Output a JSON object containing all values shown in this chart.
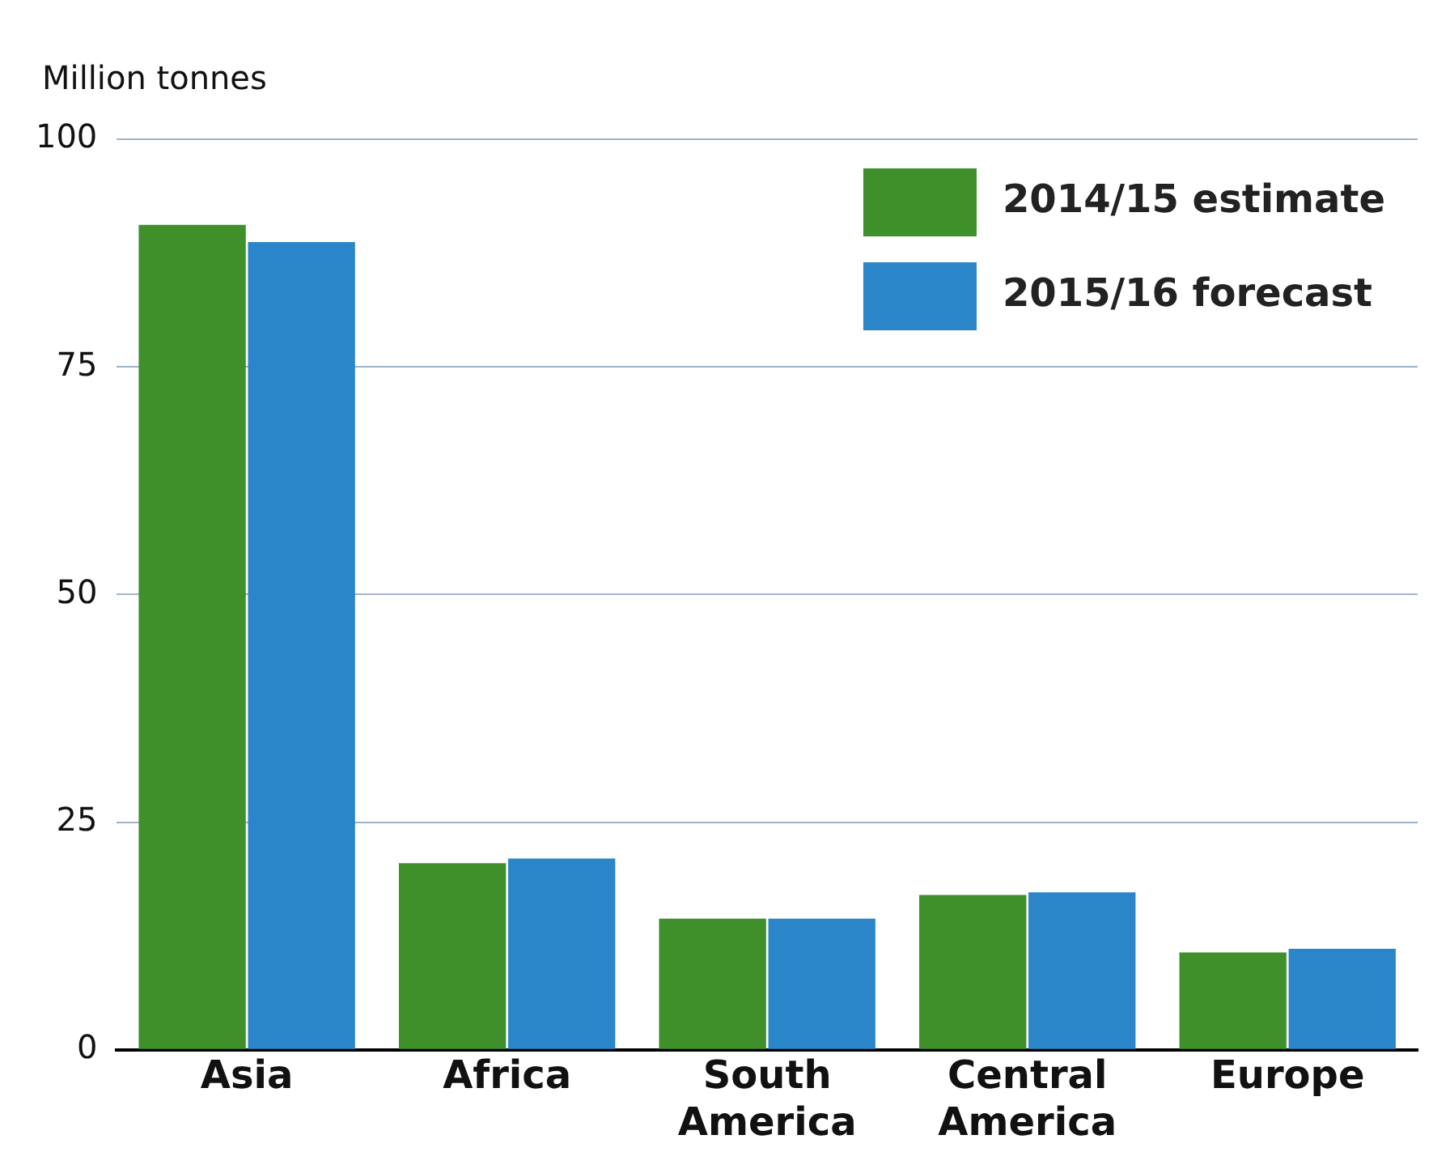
{
  "chart_data": {
    "type": "bar",
    "ylabel": "Million tonnes",
    "categories": [
      "Asia",
      "Africa",
      "South America",
      "Central America",
      "Europe"
    ],
    "series": [
      {
        "name": "2014/15 estimate",
        "color": "#3f8f2a",
        "values": [
          90.6,
          20.5,
          14.4,
          17.0,
          10.7
        ]
      },
      {
        "name": "2015/16 forecast",
        "color": "#2a86c8",
        "values": [
          88.7,
          21.0,
          14.4,
          17.3,
          11.1
        ]
      }
    ],
    "ylim": [
      0,
      100
    ],
    "yticks": [
      0,
      25,
      50,
      75,
      100
    ],
    "grid": "y",
    "legend": "top right"
  }
}
